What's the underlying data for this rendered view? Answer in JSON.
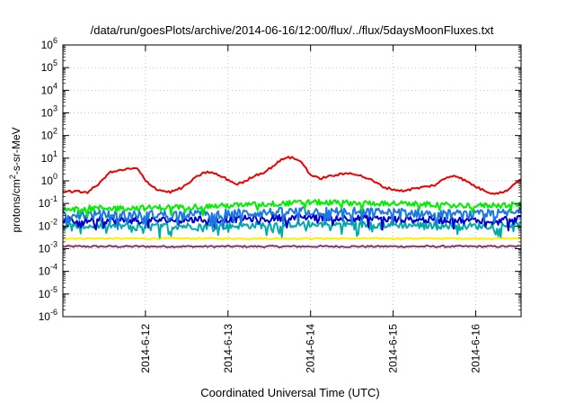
{
  "chart_data": {
    "type": "line",
    "title": "/data/run/goesPlots/archive/2014-06-16/12:00/flux/../flux/5daysMoonFluxes.txt",
    "xlabel": "Coordinated Universal Time (UTC)",
    "ylabel": "protons/cm2-s-sr-MeV",
    "yscale": "log",
    "ylim_exponents": [
      -6,
      6
    ],
    "ytick_exponents": [
      -6,
      -5,
      -4,
      -3,
      -2,
      -1,
      0,
      1,
      2,
      3,
      4,
      5,
      6
    ],
    "xlim_days": [
      0,
      5.55
    ],
    "xticks": [
      {
        "label": "2014-6-12",
        "day": 1.0
      },
      {
        "label": "2014-6-13",
        "day": 2.0
      },
      {
        "label": "2014-6-14",
        "day": 3.0
      },
      {
        "label": "2014-6-15",
        "day": 4.0
      },
      {
        "label": "2014-6-16",
        "day": 5.0
      }
    ],
    "grid": true,
    "series": [
      {
        "color": "#ee0000",
        "style": "smooth",
        "noise": 0.05,
        "log10_values": [
          [
            0,
            -0.45
          ],
          [
            0.3,
            -0.5
          ],
          [
            0.45,
            -0.1
          ],
          [
            0.55,
            0.35
          ],
          [
            0.75,
            0.5
          ],
          [
            0.9,
            0.55
          ],
          [
            1.0,
            0.0
          ],
          [
            1.15,
            -0.4
          ],
          [
            1.3,
            -0.5
          ],
          [
            1.45,
            -0.3
          ],
          [
            1.65,
            0.25
          ],
          [
            1.75,
            0.4
          ],
          [
            1.85,
            0.3
          ],
          [
            2.0,
            0.05
          ],
          [
            2.1,
            -0.15
          ],
          [
            2.2,
            -0.05
          ],
          [
            2.3,
            0.2
          ],
          [
            2.45,
            0.4
          ],
          [
            2.6,
            0.8
          ],
          [
            2.7,
            1.05
          ],
          [
            2.8,
            1.0
          ],
          [
            2.9,
            0.8
          ],
          [
            3.0,
            0.25
          ],
          [
            3.1,
            0.1
          ],
          [
            3.3,
            0.25
          ],
          [
            3.5,
            0.35
          ],
          [
            3.7,
            0.1
          ],
          [
            3.9,
            -0.3
          ],
          [
            4.1,
            -0.45
          ],
          [
            4.25,
            -0.35
          ],
          [
            4.5,
            -0.2
          ],
          [
            4.65,
            0.15
          ],
          [
            4.75,
            0.25
          ],
          [
            4.9,
            -0.05
          ],
          [
            5.05,
            -0.35
          ],
          [
            5.2,
            -0.55
          ],
          [
            5.35,
            -0.5
          ],
          [
            5.55,
            0.1
          ]
        ]
      },
      {
        "color": "#00ee00",
        "style": "noisy",
        "noise": 0.12,
        "log10_values": [
          [
            0,
            -1.2
          ],
          [
            1.0,
            -1.2
          ],
          [
            2.0,
            -1.1
          ],
          [
            3.0,
            -0.95
          ],
          [
            4.0,
            -1.0
          ],
          [
            5.0,
            -1.1
          ],
          [
            5.55,
            -1.05
          ]
        ]
      },
      {
        "color": "#1a78e0",
        "style": "noisy",
        "noise": 0.2,
        "log10_values": [
          [
            0,
            -1.5
          ],
          [
            1.0,
            -1.5
          ],
          [
            2.0,
            -1.45
          ],
          [
            3.0,
            -1.35
          ],
          [
            4.0,
            -1.4
          ],
          [
            5.0,
            -1.5
          ],
          [
            5.55,
            -1.4
          ]
        ]
      },
      {
        "color": "#0000cc",
        "style": "noisy",
        "noise": 0.15,
        "log10_values": [
          [
            0,
            -1.75
          ],
          [
            1.0,
            -1.75
          ],
          [
            2.0,
            -1.7
          ],
          [
            3.0,
            -1.6
          ],
          [
            4.0,
            -1.7
          ],
          [
            5.0,
            -1.75
          ],
          [
            5.55,
            -1.65
          ]
        ]
      },
      {
        "color": "#00aaaa",
        "style": "noisy",
        "noise": 0.15,
        "log10_values": [
          [
            0,
            -2.0
          ],
          [
            1.0,
            -2.0
          ],
          [
            2.0,
            -2.0
          ],
          [
            3.0,
            -1.9
          ],
          [
            4.0,
            -1.95
          ],
          [
            5.0,
            -2.0
          ],
          [
            5.55,
            -1.95
          ]
        ]
      },
      {
        "color": "#ffee00",
        "style": "smooth",
        "noise": 0.03,
        "log10_values": [
          [
            0,
            -2.55
          ],
          [
            5.55,
            -2.55
          ]
        ]
      },
      {
        "color": "#883366",
        "style": "smooth",
        "noise": 0.04,
        "log10_values": [
          [
            0,
            -2.9
          ],
          [
            5.55,
            -2.9
          ]
        ]
      }
    ]
  }
}
